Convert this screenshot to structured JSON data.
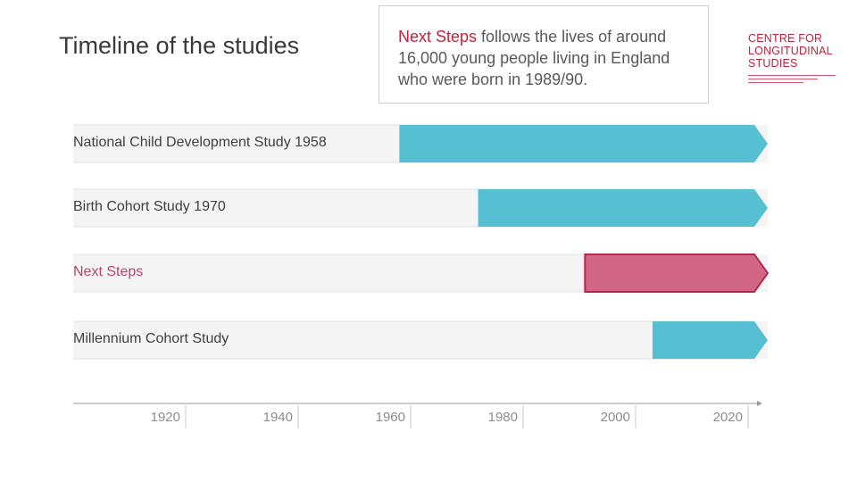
{
  "header": {
    "title": "Timeline of the studies"
  },
  "callout": {
    "highlight": "Next Steps",
    "text": " follows the lives of around 16,000 young people living in England who were born in 1989/90."
  },
  "logo": {
    "line1": "CENTRE FOR",
    "line2": "LONGITUDINAL",
    "line3": "STUDIES"
  },
  "colors": {
    "teal": "#56bfd1",
    "pink": "#d06585",
    "pink_border": "#b52a4c",
    "track": "#f4f4f4",
    "brand": "#c1213c"
  },
  "chart_data": {
    "type": "bar",
    "orientation": "horizontal",
    "x_ticks": [
      1920,
      1940,
      1960,
      1980,
      2000,
      2020
    ],
    "x_range": [
      1900,
      2027
    ],
    "series": [
      {
        "name": "National Child Development Study 1958",
        "start": 1958,
        "end": 2027,
        "color": "teal"
      },
      {
        "name": "Birth Cohort Study 1970",
        "start": 1972,
        "end": 2027,
        "color": "teal"
      },
      {
        "name": "Next Steps",
        "start": 1991,
        "end": 2027,
        "color": "pink"
      },
      {
        "name": "Millennium Cohort Study",
        "start": 2003,
        "end": 2027,
        "color": "teal"
      }
    ]
  }
}
